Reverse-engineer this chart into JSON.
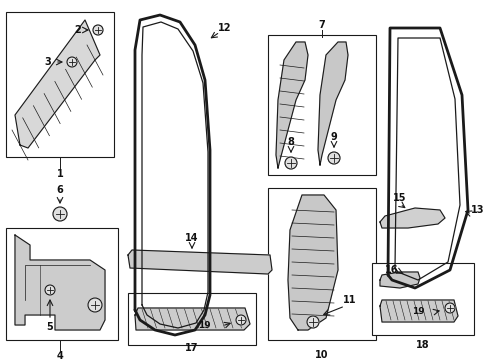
{
  "bg_color": "#ffffff",
  "line_color": "#1a1a1a",
  "label_color": "#111111",
  "fig_w": 4.89,
  "fig_h": 3.6,
  "dpi": 100
}
